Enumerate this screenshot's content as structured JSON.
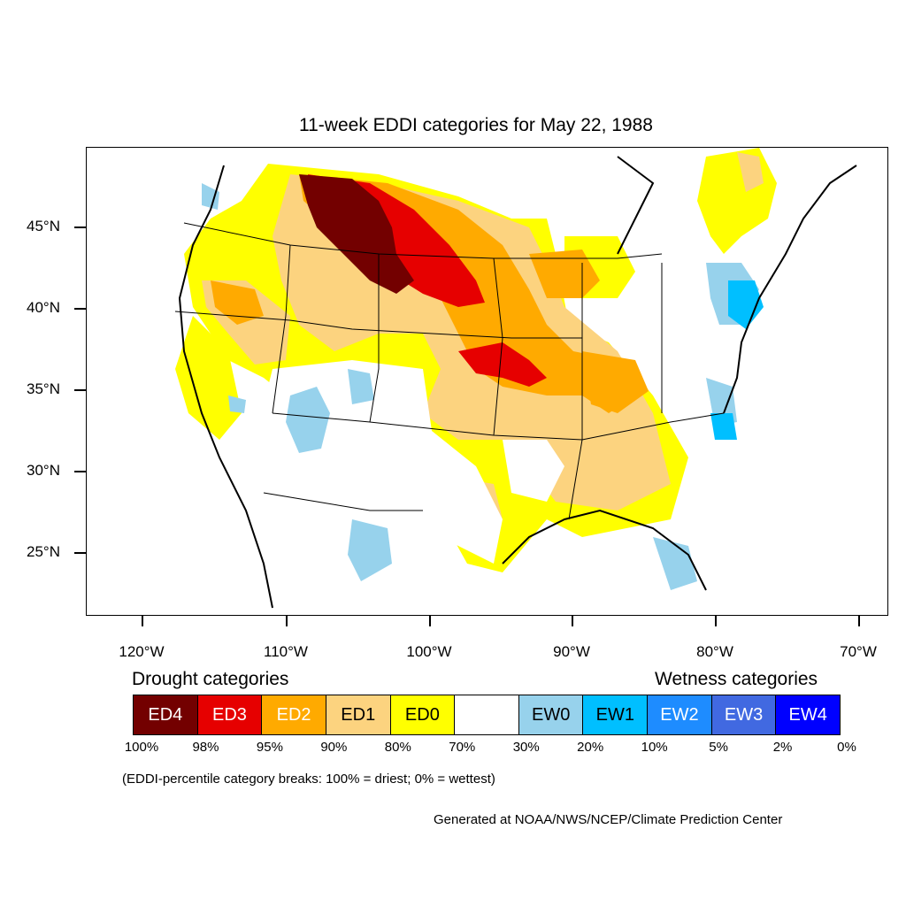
{
  "title": "11-week EDDI categories for May 22, 1988",
  "lat_labels": [
    "45°N",
    "40°N",
    "35°N",
    "30°N",
    "25°N"
  ],
  "lon_labels": [
    "120°W",
    "110°W",
    "100°W",
    "90°W",
    "80°W",
    "70°W"
  ],
  "legend": {
    "drought_heading": "Drought categories",
    "wetness_heading": "Wetness categories",
    "categories": [
      {
        "label": "ED4",
        "color": "#730000",
        "text_color": "#ffffff"
      },
      {
        "label": "ED3",
        "color": "#e60000",
        "text_color": "#ffffff"
      },
      {
        "label": "ED2",
        "color": "#ffaa00",
        "text_color": "#ffffff"
      },
      {
        "label": "ED1",
        "color": "#fcd37f",
        "text_color": "#000000"
      },
      {
        "label": "ED0",
        "color": "#ffff00",
        "text_color": "#000000"
      },
      {
        "label": "",
        "color": "#ffffff",
        "text_color": "#000000"
      },
      {
        "label": "EW0",
        "color": "#97d2ec",
        "text_color": "#000000"
      },
      {
        "label": "EW1",
        "color": "#00bfff",
        "text_color": "#000000"
      },
      {
        "label": "EW2",
        "color": "#1e8cff",
        "text_color": "#ffffff"
      },
      {
        "label": "EW3",
        "color": "#4169e1",
        "text_color": "#ffffff"
      },
      {
        "label": "EW4",
        "color": "#0000ff",
        "text_color": "#ffffff"
      }
    ],
    "percentiles": [
      "100%",
      "98%",
      "95%",
      "90%",
      "80%",
      "70%",
      "30%",
      "20%",
      "10%",
      "5%",
      "2%",
      "0%"
    ]
  },
  "note": "(EDDI-percentile category breaks: 100% = driest; 0% = wettest)",
  "credit": "Generated at NOAA/NWS/NCEP/Climate Prediction Center"
}
